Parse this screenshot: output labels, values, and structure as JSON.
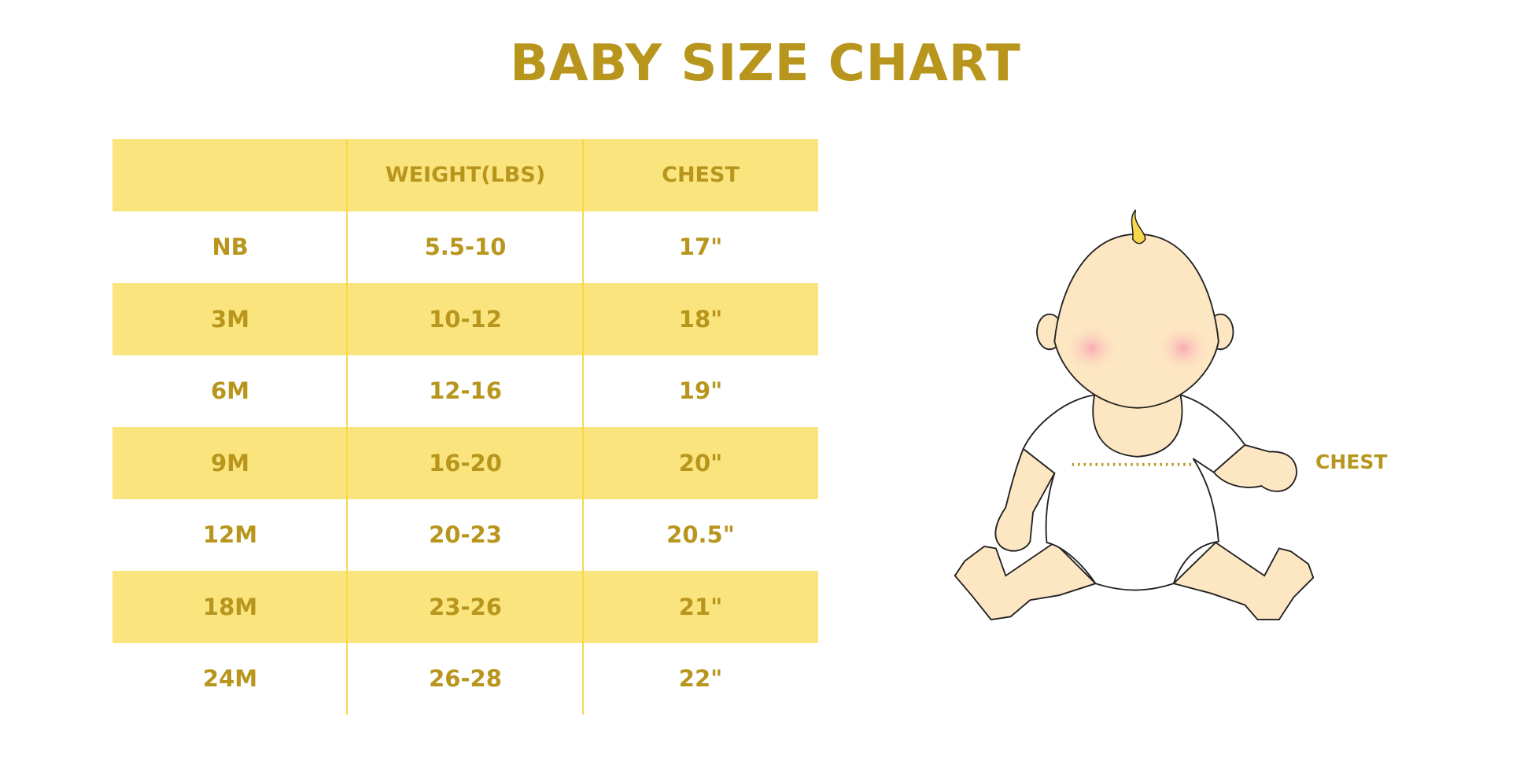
{
  "title": "BABY SIZE CHART",
  "table": {
    "headers": [
      "",
      "WEIGHT(LBS)",
      "CHEST"
    ],
    "rows": [
      [
        "NB",
        "5.5-10",
        "17\""
      ],
      [
        "3M",
        "10-12",
        "18\""
      ],
      [
        "6M",
        "12-16",
        "19\""
      ],
      [
        "9M",
        "16-20",
        "20\""
      ],
      [
        "12M",
        "20-23",
        "20.5\""
      ],
      [
        "18M",
        "23-26",
        "21\""
      ],
      [
        "24M",
        "26-28",
        "22\""
      ]
    ]
  },
  "illustration": {
    "chest_label": "CHEST"
  },
  "colors": {
    "accent_text": "#B8961E",
    "row_fill": "#FAE47D",
    "divider": "#F7D84A",
    "skin": "#FDE6C2"
  }
}
